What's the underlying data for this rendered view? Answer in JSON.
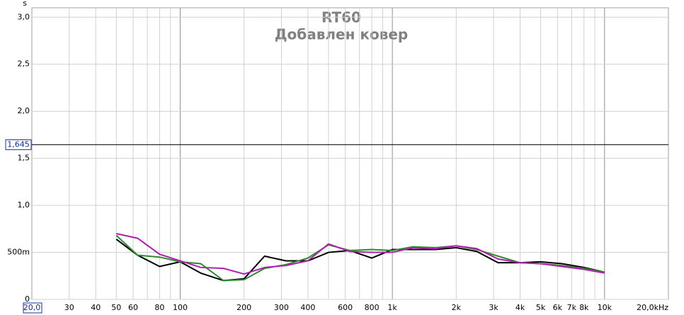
{
  "chart_data": {
    "type": "line",
    "title": "RT60",
    "subtitle": "Добавлен ковер",
    "y_unit": "s",
    "x": [
      50,
      63,
      80,
      100,
      125,
      160,
      200,
      250,
      315,
      400,
      500,
      630,
      800,
      1000,
      1250,
      1600,
      2000,
      2500,
      3150,
      4000,
      5000,
      6300,
      8000,
      10000
    ],
    "series": [
      {
        "color": "#000000",
        "values": [
          0.64,
          0.47,
          0.35,
          0.4,
          0.28,
          0.2,
          0.22,
          0.46,
          0.41,
          0.41,
          0.5,
          0.52,
          0.44,
          0.53,
          0.53,
          0.53,
          0.55,
          0.51,
          0.39,
          0.39,
          0.4,
          0.38,
          0.34,
          0.29
        ]
      },
      {
        "color": "#2e8b2e",
        "values": [
          0.68,
          0.47,
          0.45,
          0.4,
          0.38,
          0.2,
          0.21,
          0.33,
          0.37,
          0.44,
          0.58,
          0.52,
          0.53,
          0.52,
          0.56,
          0.55,
          0.57,
          0.53,
          0.46,
          0.39,
          0.38,
          0.36,
          0.33,
          0.29
        ]
      },
      {
        "color": "#b020b0",
        "values": [
          0.7,
          0.65,
          0.48,
          0.41,
          0.34,
          0.33,
          0.27,
          0.34,
          0.36,
          0.41,
          0.59,
          0.51,
          0.5,
          0.5,
          0.55,
          0.54,
          0.57,
          0.54,
          0.43,
          0.39,
          0.38,
          0.35,
          0.32,
          0.28
        ]
      }
    ],
    "xlog": true,
    "xlim": [
      20,
      20000
    ],
    "ylim": [
      0,
      3.1
    ],
    "xticks": [
      {
        "value": 20,
        "label": "20,0"
      },
      30,
      40,
      50,
      60,
      80,
      100,
      200,
      300,
      400,
      600,
      800,
      {
        "value": 1000,
        "label": "1k"
      },
      {
        "value": 2000,
        "label": "2k"
      },
      {
        "value": 3000,
        "label": "3k"
      },
      {
        "value": 4000,
        "label": "4k"
      },
      {
        "value": 5000,
        "label": "5k"
      },
      {
        "value": 6000,
        "label": "6k"
      },
      {
        "value": 7000,
        "label": "7k"
      },
      {
        "value": 8000,
        "label": "8k"
      },
      {
        "value": 10000,
        "label": "10k"
      },
      {
        "value": 20000,
        "label": "20,0kHz"
      }
    ],
    "x_minor_ticks": [
      70,
      90,
      500,
      700,
      900,
      9000
    ],
    "yticks": [
      0,
      {
        "value": 0.5,
        "label": "500m"
      },
      {
        "value": 1,
        "label": "1,0"
      },
      {
        "value": 1.5,
        "label": "1,5"
      },
      {
        "value": 2,
        "label": "2,0"
      },
      {
        "value": 2.5,
        "label": "2,5"
      },
      {
        "value": 3,
        "label": "3,0"
      }
    ],
    "cursor": {
      "value": 1.645,
      "label": "1,645"
    },
    "grid": true
  }
}
